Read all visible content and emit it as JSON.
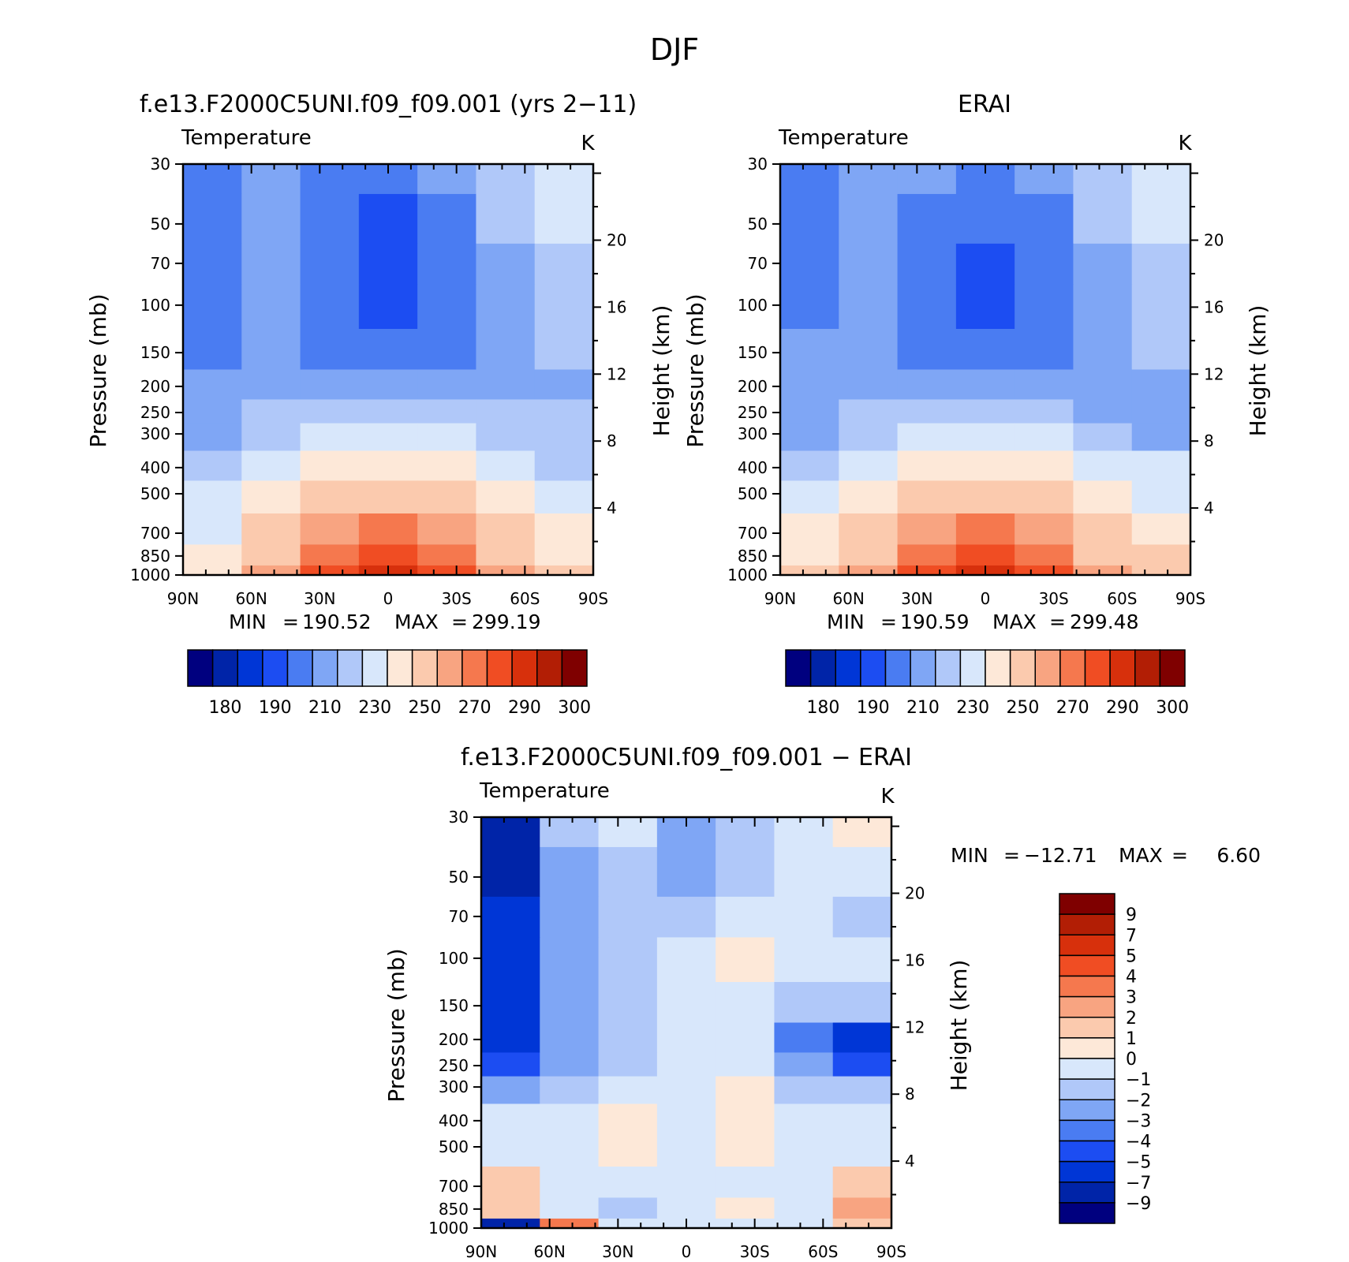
{
  "figure": {
    "title": "DJF"
  },
  "colors": {
    "levels": [
      "#00007f",
      "#0024a8",
      "#0036d6",
      "#1c4df2",
      "#4a7cf2",
      "#7fa6f5",
      "#b0c8f9",
      "#d8e7fb",
      "#fde8d8",
      "#fbcaae",
      "#f8a481",
      "#f5784e",
      "#f04d23",
      "#d7300c",
      "#b21e05",
      "#7f0000"
    ]
  },
  "panels": [
    {
      "id": "model",
      "case_title": "f.e13.F2000C5UNI.f09_f09.001 (yrs 2−11)",
      "variable": "Temperature",
      "units": "K",
      "ylabel": "Pressure (mb)",
      "ylabel2": "Height (km)",
      "xticks": [
        "90N",
        "60N",
        "30N",
        "0",
        "30S",
        "60S",
        "90S"
      ],
      "yticks": [
        "30",
        "50",
        "70",
        "100",
        "150",
        "200",
        "250",
        "300",
        "400",
        "500",
        "700",
        "850",
        "1000"
      ],
      "height_ticks": [
        "20",
        "16",
        "12",
        "8",
        "4"
      ],
      "min_label": "MIN",
      "min_value": "190.52",
      "max_label": "MAX",
      "max_value": "299.19",
      "colorbar_ticks": [
        "180",
        "190",
        "210",
        "230",
        "250",
        "270",
        "290",
        "300"
      ]
    },
    {
      "id": "erai",
      "case_title": "ERAI",
      "variable": "Temperature",
      "units": "K",
      "ylabel": "Pressure (mb)",
      "ylabel2": "Height (km)",
      "xticks": [
        "90N",
        "60N",
        "30N",
        "0",
        "30S",
        "60S",
        "90S"
      ],
      "yticks": [
        "30",
        "50",
        "70",
        "100",
        "150",
        "200",
        "250",
        "300",
        "400",
        "500",
        "700",
        "850",
        "1000"
      ],
      "height_ticks": [
        "20",
        "16",
        "12",
        "8",
        "4"
      ],
      "min_label": "MIN",
      "min_value": "190.59",
      "max_label": "MAX",
      "max_value": "299.48",
      "colorbar_ticks": [
        "180",
        "190",
        "210",
        "230",
        "250",
        "270",
        "290",
        "300"
      ]
    },
    {
      "id": "diff",
      "case_title": "f.e13.F2000C5UNI.f09_f09.001 − ERAI",
      "variable": "Temperature",
      "units": "K",
      "ylabel": "Pressure (mb)",
      "ylabel2": "Height (km)",
      "xticks": [
        "90N",
        "60N",
        "30N",
        "0",
        "30S",
        "60S",
        "90S"
      ],
      "yticks": [
        "30",
        "50",
        "70",
        "100",
        "150",
        "200",
        "250",
        "300",
        "400",
        "500",
        "700",
        "850",
        "1000"
      ],
      "height_ticks": [
        "20",
        "16",
        "12",
        "8",
        "4"
      ],
      "min_label": "MIN",
      "min_value": "−12.71",
      "max_label": "MAX",
      "max_value": "6.60",
      "colorbar_ticks": [
        "9",
        "7",
        "5",
        "4",
        "3",
        "2",
        "1",
        "0",
        "−1",
        "−2",
        "−3",
        "−4",
        "−5",
        "−7",
        "−9"
      ]
    }
  ],
  "chart_data": [
    {
      "type": "heatmap",
      "title": "f.e13.F2000C5UNI.f09_f09.001 (yrs 2−11)",
      "subtitle": "Temperature",
      "units": "K",
      "x": [
        "90N",
        "60N",
        "30N",
        "0",
        "30S",
        "60S",
        "90S"
      ],
      "y_pressure_mb": [
        30,
        50,
        70,
        100,
        150,
        200,
        250,
        300,
        400,
        500,
        700,
        850,
        1000
      ],
      "values": [
        [
          202,
          214,
          208,
          202,
          210,
          222,
          232
        ],
        [
          204,
          214,
          206,
          198,
          206,
          220,
          232
        ],
        [
          205,
          214,
          204,
          196,
          204,
          218,
          228
        ],
        [
          206,
          214,
          204,
          196,
          204,
          216,
          224
        ],
        [
          208,
          214,
          208,
          204,
          208,
          214,
          220
        ],
        [
          210,
          216,
          218,
          218,
          216,
          214,
          218
        ],
        [
          212,
          220,
          226,
          228,
          226,
          220,
          220
        ],
        [
          216,
          224,
          232,
          236,
          232,
          224,
          222
        ],
        [
          224,
          232,
          242,
          246,
          242,
          232,
          228
        ],
        [
          230,
          240,
          252,
          256,
          252,
          240,
          234
        ],
        [
          238,
          250,
          264,
          270,
          264,
          250,
          242
        ],
        [
          244,
          256,
          274,
          280,
          274,
          256,
          248
        ],
        [
          248,
          262,
          282,
          292,
          284,
          262,
          252
        ]
      ],
      "min": 190.52,
      "max": 299.19,
      "levels": [
        180,
        185,
        190,
        200,
        210,
        220,
        230,
        240,
        250,
        260,
        270,
        280,
        290,
        295,
        300
      ]
    },
    {
      "type": "heatmap",
      "title": "ERAI",
      "subtitle": "Temperature",
      "units": "K",
      "x": [
        "90N",
        "60N",
        "30N",
        "0",
        "30S",
        "60S",
        "90S"
      ],
      "y_pressure_mb": [
        30,
        50,
        70,
        100,
        150,
        200,
        250,
        300,
        400,
        500,
        700,
        850,
        1000
      ],
      "values": [
        [
          204,
          214,
          210,
          204,
          212,
          222,
          232
        ],
        [
          206,
          214,
          208,
          200,
          208,
          220,
          230
        ],
        [
          206,
          214,
          204,
          196,
          204,
          218,
          228
        ],
        [
          208,
          214,
          204,
          196,
          204,
          216,
          224
        ],
        [
          210,
          214,
          208,
          204,
          208,
          214,
          220
        ],
        [
          212,
          216,
          218,
          218,
          216,
          214,
          216
        ],
        [
          214,
          220,
          226,
          228,
          226,
          218,
          216
        ],
        [
          218,
          226,
          232,
          236,
          232,
          224,
          218
        ],
        [
          226,
          234,
          242,
          246,
          242,
          234,
          230
        ],
        [
          232,
          242,
          252,
          256,
          252,
          242,
          236
        ],
        [
          240,
          252,
          264,
          270,
          264,
          252,
          244
        ],
        [
          246,
          258,
          274,
          280,
          274,
          258,
          250
        ],
        [
          250,
          264,
          282,
          292,
          284,
          264,
          254
        ]
      ],
      "min": 190.59,
      "max": 299.48,
      "levels": [
        180,
        185,
        190,
        200,
        210,
        220,
        230,
        240,
        250,
        260,
        270,
        280,
        290,
        295,
        300
      ]
    },
    {
      "type": "heatmap",
      "title": "f.e13.F2000C5UNI.f09_f09.001 − ERAI",
      "subtitle": "Temperature",
      "units": "K",
      "x": [
        "90N",
        "60N",
        "30N",
        "0",
        "30S",
        "60S",
        "90S"
      ],
      "y_pressure_mb": [
        30,
        50,
        70,
        100,
        150,
        200,
        250,
        300,
        400,
        500,
        700,
        850,
        1000
      ],
      "values": [
        [
          -9,
          -2,
          -1,
          -3,
          -2,
          -1,
          0
        ],
        [
          -8,
          -3,
          -2,
          -3,
          -2,
          -1,
          -1
        ],
        [
          -7,
          -3,
          -2,
          -2,
          -1,
          -1,
          -2
        ],
        [
          -6,
          -3,
          -2,
          -1,
          0.5,
          -1,
          -1
        ],
        [
          -6,
          -3,
          -2,
          -1,
          -1,
          -2,
          -2
        ],
        [
          -7,
          -3,
          -2,
          -1,
          -1,
          -4,
          -6
        ],
        [
          -5,
          -3,
          -2,
          -1,
          -1,
          -3,
          -5
        ],
        [
          -3,
          -2,
          -1,
          -1,
          0.5,
          -2,
          -2
        ],
        [
          -1,
          -1,
          0.5,
          -1,
          0.5,
          -1,
          -1
        ],
        [
          -1,
          -1,
          0.5,
          -1,
          0.5,
          -1,
          -1
        ],
        [
          1,
          -1,
          -1,
          -1,
          -1,
          -1,
          1
        ],
        [
          1,
          -1,
          -2,
          -1,
          0.5,
          -1,
          2
        ],
        [
          -9,
          3,
          -1,
          -1,
          -1,
          -1,
          1
        ]
      ],
      "min": -12.71,
      "max": 6.6,
      "levels": [
        -9,
        -7,
        -5,
        -4,
        -3,
        -2,
        -1,
        0,
        1,
        2,
        3,
        4,
        5,
        7,
        9
      ]
    }
  ]
}
